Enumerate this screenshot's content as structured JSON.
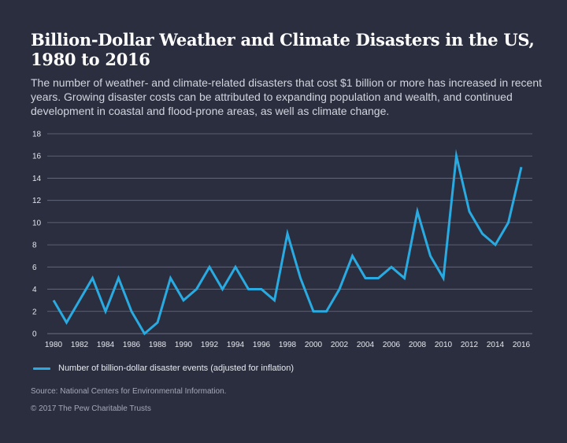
{
  "header": {
    "title": "Billion-Dollar Weather and Climate Disasters in the US, 1980 to 2016",
    "subtitle": "The number of weather- and climate-related disasters that cost $1 billion or more has increased in recent years. Growing disaster costs can be attributed to expanding population and wealth, and continued development in coastal and flood-prone areas, as well as climate change."
  },
  "footer": {
    "source": "Source: National Centers for Environmental Information.",
    "copyright": "© 2017 The Pew Charitable Trusts"
  },
  "chart_data": {
    "type": "line",
    "title": "Billion-Dollar Weather and Climate Disasters in the US, 1980 to 2016",
    "xlabel": "",
    "ylabel": "",
    "x": [
      1980,
      1981,
      1982,
      1983,
      1984,
      1985,
      1986,
      1987,
      1988,
      1989,
      1990,
      1991,
      1992,
      1993,
      1994,
      1995,
      1996,
      1997,
      1998,
      1999,
      2000,
      2001,
      2002,
      2003,
      2004,
      2005,
      2006,
      2007,
      2008,
      2009,
      2010,
      2011,
      2012,
      2013,
      2014,
      2015,
      2016
    ],
    "series": [
      {
        "name": "Number of billion-dollar disaster events (adjusted for inflation)",
        "color": "#29abe2",
        "values": [
          3,
          1,
          3,
          5,
          2,
          5,
          2,
          0,
          1,
          5,
          3,
          4,
          6,
          4,
          6,
          4,
          4,
          3,
          9,
          5,
          2,
          2,
          4,
          7,
          5,
          5,
          6,
          5,
          11,
          7,
          5,
          16,
          11,
          9,
          8,
          10,
          15
        ]
      }
    ],
    "xticks": [
      1980,
      1982,
      1984,
      1986,
      1988,
      1990,
      1992,
      1994,
      1996,
      1998,
      2000,
      2002,
      2004,
      2006,
      2008,
      2010,
      2012,
      2014,
      2016
    ],
    "yticks": [
      0,
      2,
      4,
      6,
      8,
      10,
      12,
      14,
      16,
      18
    ],
    "xlim": [
      1980,
      2016
    ],
    "ylim": [
      0,
      18
    ],
    "grid": "horizontal",
    "legend_position": "bottom-left",
    "colors": {
      "background": "#2a2e3f",
      "grid": "#6a6f82",
      "line": "#29abe2",
      "text": "#e6e8ee"
    }
  }
}
